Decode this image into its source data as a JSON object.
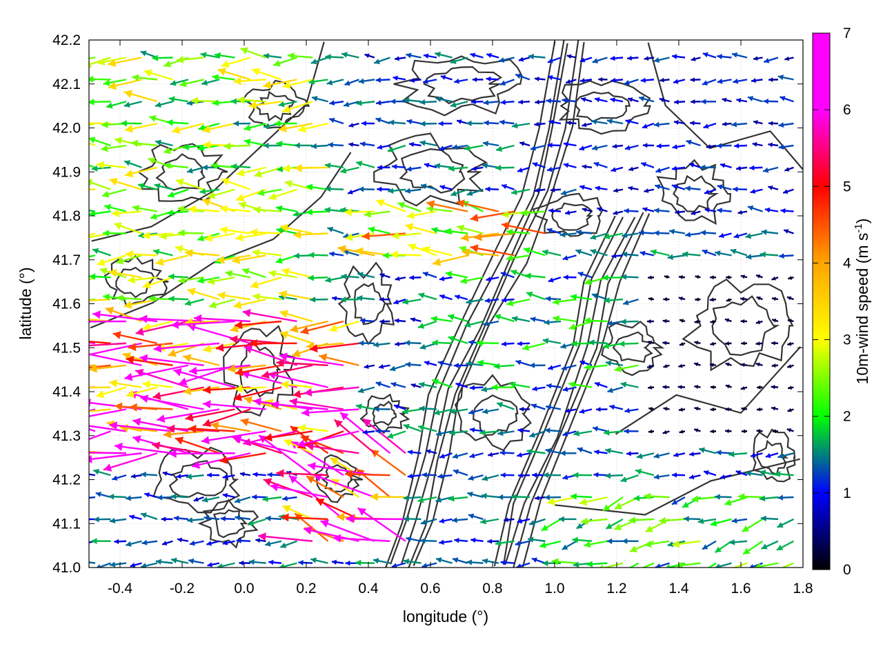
{
  "chart_data": {
    "type": "quiver",
    "title": "",
    "xlabel": "longitude (°)",
    "ylabel": "latitude (°)",
    "colorbar_label": "10m-wind speed (m s",
    "colorbar_label_sup": "-1",
    "colorbar_label_end": ")",
    "xlim": [
      -0.5,
      1.8
    ],
    "ylim": [
      41.0,
      42.2
    ],
    "cbar_lim": [
      0,
      7
    ],
    "xticks": [
      -0.4,
      -0.2,
      0.0,
      0.2,
      0.4,
      0.6,
      0.8,
      1.0,
      1.2,
      1.4,
      1.6,
      1.8
    ],
    "xtick_labels": [
      "-0.4",
      "-0.2",
      "0.0",
      "0.2",
      "0.4",
      "0.6",
      "0.8",
      "1.0",
      "1.2",
      "1.4",
      "1.6",
      "1.8"
    ],
    "yticks": [
      41.0,
      41.1,
      41.2,
      41.3,
      41.4,
      41.5,
      41.6,
      41.7,
      41.8,
      41.9,
      42.0,
      42.1,
      42.2
    ],
    "ytick_labels": [
      "41.0",
      "41.1",
      "41.2",
      "41.3",
      "41.4",
      "41.5",
      "41.6",
      "41.7",
      "41.8",
      "41.9",
      "42.0",
      "42.1",
      "42.2"
    ],
    "cbar_ticks": [
      0,
      1,
      2,
      3,
      4,
      5,
      6,
      7
    ],
    "cbar_tick_labels": [
      "0",
      "1",
      "2",
      "3",
      "4",
      "5",
      "6",
      "7"
    ],
    "grid": true,
    "colormap": [
      "#000000",
      "#0000ff",
      "#00ff00",
      "#ffff00",
      "#ffa500",
      "#ff0000",
      "#ff00ff"
    ],
    "contour_color": "#333333",
    "grid_resolution_deg": [
      0.05,
      0.05
    ],
    "wind_field_regions": [
      {
        "lon": [
          -0.5,
          0.4
        ],
        "lat": [
          41.25,
          41.6
        ],
        "speed": 6.2,
        "dir_deg": 180
      },
      {
        "lon": [
          -0.5,
          0.3
        ],
        "lat": [
          41.6,
          42.2
        ],
        "speed": 3.0,
        "dir_deg": 180
      },
      {
        "lon": [
          0.2,
          0.55
        ],
        "lat": [
          41.05,
          41.3
        ],
        "speed": 6.5,
        "dir_deg": 160
      },
      {
        "lon": [
          0.4,
          1.0
        ],
        "lat": [
          41.7,
          41.85
        ],
        "speed": 4.0,
        "dir_deg": 175
      },
      {
        "lon": [
          0.6,
          1.3
        ],
        "lat": [
          41.4,
          41.7
        ],
        "speed": 2.0,
        "dir_deg": 180
      },
      {
        "lon": [
          1.0,
          1.8
        ],
        "lat": [
          41.8,
          42.2
        ],
        "speed": 1.2,
        "dir_deg": 180
      },
      {
        "lon": [
          1.0,
          1.8
        ],
        "lat": [
          41.0,
          41.2
        ],
        "speed": 2.5,
        "dir_deg": 195
      },
      {
        "lon": [
          1.3,
          1.8
        ],
        "lat": [
          41.3,
          41.7
        ],
        "speed": 0.3,
        "dir_deg": 180
      }
    ]
  }
}
